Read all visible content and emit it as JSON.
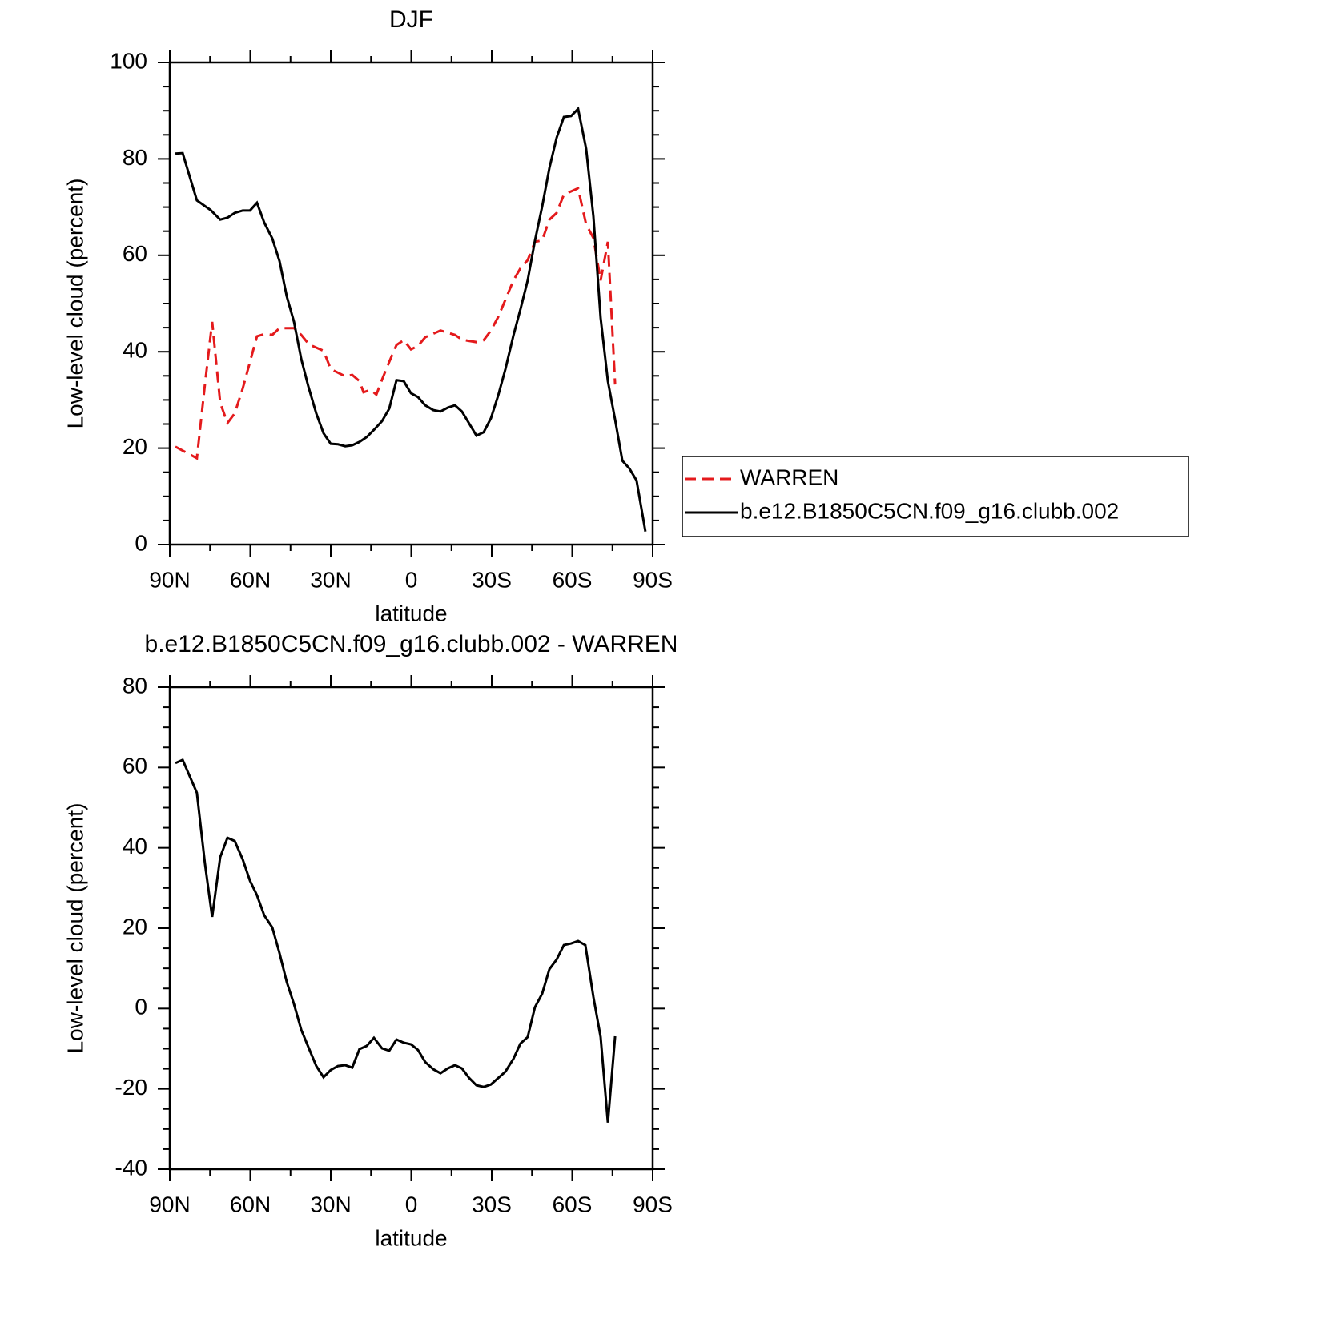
{
  "chart_data": [
    {
      "type": "line",
      "title": "DJF",
      "x_label": "latitude",
      "y_label": "Low-level cloud (percent)",
      "xlim": [
        90,
        -90
      ],
      "xticks": [
        {
          "value": 90,
          "label": "90N"
        },
        {
          "value": 60,
          "label": "60N"
        },
        {
          "value": 30,
          "label": "30N"
        },
        0,
        {
          "value": -30,
          "label": "30S"
        },
        {
          "value": -60,
          "label": "60S"
        },
        {
          "value": -90,
          "label": "90S"
        }
      ],
      "ylim": [
        0,
        100
      ],
      "yticks": [
        0,
        20,
        40,
        60,
        80,
        100
      ],
      "legend": "outside-right",
      "series": [
        {
          "name": "WARREN",
          "color": "#e41a1c",
          "dashed": true,
          "x": [
            87.9,
            79.9,
            76.9,
            74.2,
            71.2,
            68.5,
            65.8,
            62.8,
            57.5,
            54.5,
            51.8,
            49.1,
            43.7,
            41.0,
            38.1,
            32.7,
            30.0,
            24.6,
            22.0,
            19.3,
            17.8,
            15.1,
            13.0,
            10.9,
            8.2,
            5.5,
            2.8,
            0.1,
            -2.5,
            -5.2,
            -10.9,
            -16.3,
            -18.9,
            -24.3,
            -27.0,
            -29.7,
            -32.4,
            -35.1,
            -38.1,
            -40.7,
            -43.4,
            -46.1,
            -48.8,
            -51.5,
            -54.2,
            -56.9,
            -62.2,
            -65.2,
            -67.9,
            -70.6,
            -73.3,
            -76.0
          ],
          "values": [
            20.3,
            17.9,
            33.2,
            46.2,
            29.4,
            25.2,
            27.2,
            32.4,
            43.2,
            43.7,
            43.5,
            44.9,
            44.9,
            43.5,
            41.5,
            40.2,
            36.4,
            34.9,
            35.2,
            33.9,
            31.6,
            32.1,
            31.1,
            34.2,
            37.9,
            41.4,
            42.4,
            40.5,
            41.2,
            43.0,
            44.4,
            43.5,
            42.5,
            42.0,
            42.4,
            44.4,
            47.2,
            50.8,
            54.8,
            57.3,
            59.0,
            62.8,
            63.1,
            67.4,
            68.8,
            72.6,
            73.9,
            66.4,
            63.6,
            54.8,
            62.8,
            33.2
          ]
        },
        {
          "name": "b.e12.B1850C5CN.f09_g16.clubb.002",
          "color": "#000000",
          "dashed": false,
          "x": [
            87.9,
            85.2,
            79.9,
            74.8,
            71.2,
            68.5,
            65.8,
            62.8,
            60.1,
            57.5,
            54.8,
            51.8,
            49.1,
            46.4,
            43.7,
            41.0,
            38.4,
            35.4,
            32.7,
            30.0,
            27.3,
            24.6,
            22.0,
            19.3,
            16.6,
            13.9,
            10.9,
            8.2,
            5.5,
            2.8,
            0.1,
            -2.5,
            -5.2,
            -8.2,
            -10.9,
            -13.6,
            -16.3,
            -18.9,
            -21.6,
            -24.3,
            -27.0,
            -29.7,
            -32.4,
            -35.1,
            -38.1,
            -40.7,
            -43.4,
            -46.1,
            -48.8,
            -51.5,
            -54.2,
            -56.9,
            -59.6,
            -62.2,
            -65.2,
            -67.9,
            -70.6,
            -73.3,
            -76.0,
            -78.7,
            -81.3,
            -84.0,
            -87.3
          ],
          "values": [
            81.1,
            81.2,
            71.4,
            69.4,
            67.4,
            67.8,
            68.8,
            69.3,
            69.3,
            70.9,
            66.8,
            63.5,
            58.8,
            51.5,
            46.2,
            38.5,
            32.9,
            27.2,
            23.1,
            20.9,
            20.8,
            20.4,
            20.6,
            21.3,
            22.3,
            23.8,
            25.6,
            28.2,
            34.1,
            33.9,
            31.4,
            30.6,
            28.9,
            27.9,
            27.6,
            28.4,
            28.9,
            27.6,
            25.1,
            22.6,
            23.3,
            26.2,
            30.9,
            36.4,
            43.4,
            48.8,
            54.8,
            63.0,
            70.1,
            78.1,
            84.4,
            88.7,
            88.9,
            90.4,
            82.1,
            68.1,
            47.0,
            33.9,
            25.9,
            17.4,
            15.8,
            13.3,
            2.7
          ]
        }
      ]
    },
    {
      "type": "line",
      "title": "b.e12.B1850C5CN.f09_g16.clubb.002 - WARREN",
      "x_label": "latitude",
      "y_label": "Low-level cloud (percent)",
      "xlim": [
        90,
        -90
      ],
      "xticks": [
        {
          "value": 90,
          "label": "90N"
        },
        {
          "value": 60,
          "label": "60N"
        },
        {
          "value": 30,
          "label": "30N"
        },
        0,
        {
          "value": -30,
          "label": "30S"
        },
        {
          "value": -60,
          "label": "60S"
        },
        {
          "value": -90,
          "label": "90S"
        }
      ],
      "ylim": [
        -40,
        80
      ],
      "yticks": [
        -40,
        -20,
        0,
        20,
        40,
        60,
        80
      ],
      "series": [
        {
          "color": "#000000",
          "dashed": false,
          "x": [
            87.9,
            85.2,
            79.9,
            76.9,
            74.2,
            71.2,
            68.5,
            65.8,
            62.8,
            60.1,
            57.5,
            54.8,
            51.8,
            49.1,
            46.4,
            43.7,
            41.0,
            38.4,
            35.4,
            32.7,
            30.0,
            27.3,
            24.6,
            22.0,
            19.3,
            16.6,
            13.9,
            10.9,
            8.2,
            5.5,
            2.8,
            0.1,
            -2.5,
            -5.2,
            -8.2,
            -10.9,
            -13.6,
            -16.3,
            -18.9,
            -21.6,
            -24.3,
            -27.0,
            -29.7,
            -32.4,
            -35.1,
            -38.1,
            -40.7,
            -43.4,
            -46.1,
            -48.8,
            -51.5,
            -54.2,
            -56.9,
            -59.6,
            -62.2,
            -64.9,
            -67.9,
            -70.6,
            -73.3,
            -76.0
          ],
          "values": [
            61.1,
            61.9,
            53.7,
            36.1,
            22.8,
            37.7,
            42.5,
            41.7,
            37.1,
            31.8,
            28.2,
            23.2,
            20.2,
            13.8,
            6.6,
            1.1,
            -5.3,
            -9.5,
            -14.3,
            -17.1,
            -15.3,
            -14.3,
            -14.1,
            -14.7,
            -10.1,
            -9.3,
            -7.3,
            -9.9,
            -10.5,
            -7.7,
            -8.5,
            -8.9,
            -10.3,
            -13.3,
            -15.1,
            -16.1,
            -14.9,
            -14.1,
            -14.9,
            -17.3,
            -19.1,
            -19.5,
            -18.9,
            -17.3,
            -15.7,
            -12.5,
            -8.7,
            -7.1,
            0.3,
            3.7,
            9.8,
            12.2,
            15.8,
            16.2,
            16.8,
            15.8,
            2.9,
            -7.1,
            -28.4,
            -6.9
          ]
        }
      ]
    }
  ]
}
